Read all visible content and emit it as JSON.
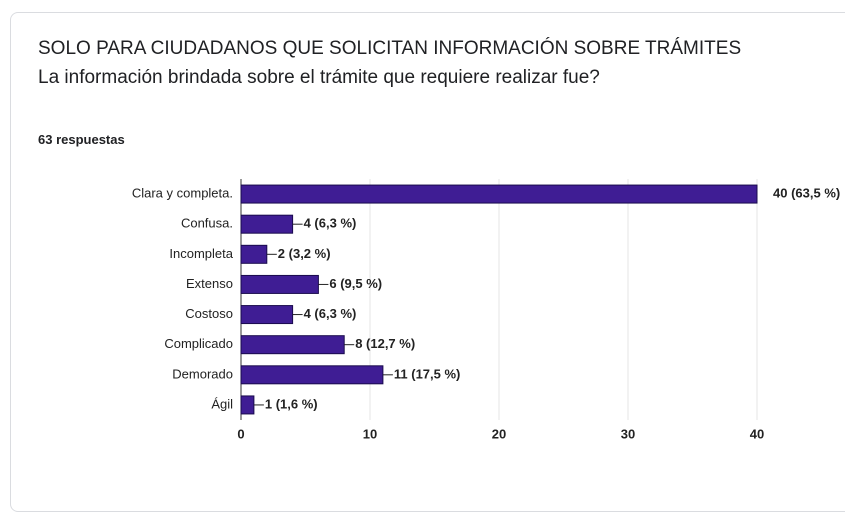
{
  "chart_data": {
    "type": "barh",
    "title": "SOLO PARA CIUDADANOS QUE SOLICITAN INFORMACIÓN SOBRE TRÁMITES La información brindada sobre el trámite que requiere realizar fue?",
    "subtitle": "63 respuestas",
    "categories": [
      "Clara y completa.",
      "Confusa.",
      "Incompleta",
      "Extenso",
      "Costoso",
      "Complicado",
      "Demorado",
      "Ágil"
    ],
    "values": [
      40,
      4,
      2,
      6,
      4,
      8,
      11,
      1
    ],
    "value_labels": [
      "40 (63,5 %)",
      "4 (6,3 %)",
      "2 (3,2 %)",
      "6 (9,5 %)",
      "4 (6,3 %)",
      "8 (12,7 %)",
      "11 (17,5 %)",
      "1 (1,6 %)"
    ],
    "color": "#3f1d94",
    "xlim": [
      0,
      40
    ],
    "xticks": [
      0,
      10,
      20,
      30,
      40
    ],
    "grid": true
  }
}
